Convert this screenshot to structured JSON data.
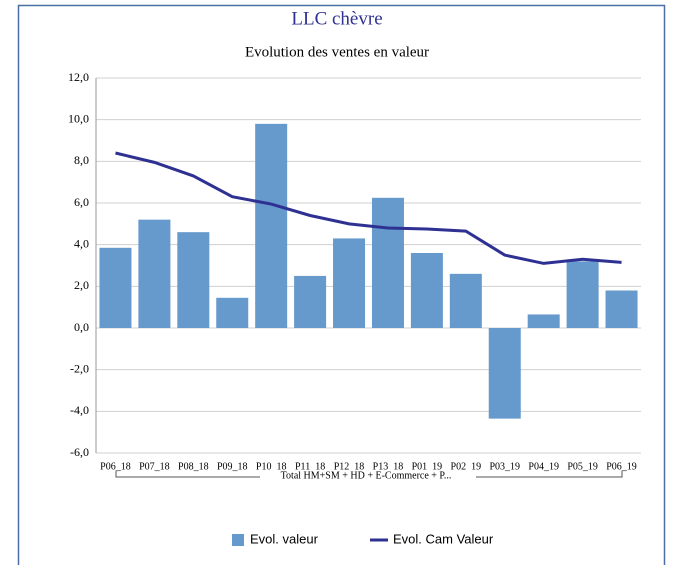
{
  "chart_data": {
    "type": "bar_line",
    "title": "LLC chèvre",
    "subtitle": "Evolution des ventes en valeur",
    "categories": [
      "P06_18",
      "P07_18",
      "P08_18",
      "P09_18",
      "P10_18",
      "P11_18",
      "P12_18",
      "P13_18",
      "P01_19",
      "P02_19",
      "P03_19",
      "P04_19",
      "P05_19",
      "P06_19"
    ],
    "category_group": "Total HM+SM + HD + E-Commerce + P...",
    "series": [
      {
        "name": "Evol.  valeur",
        "type": "bar",
        "color": "#6699cc",
        "values": [
          3.85,
          5.2,
          4.6,
          1.45,
          9.8,
          2.5,
          4.3,
          6.25,
          3.6,
          2.6,
          -4.35,
          0.65,
          3.2,
          1.8
        ]
      },
      {
        "name": "Evol. Cam Valeur",
        "type": "line",
        "color": "#2e3192",
        "values": [
          8.4,
          7.95,
          7.3,
          6.3,
          5.95,
          5.4,
          5.0,
          4.8,
          4.75,
          4.65,
          3.5,
          3.1,
          3.3,
          3.15
        ]
      }
    ],
    "ylim": [
      -6,
      12
    ],
    "yticks": [
      {
        "value": -6,
        "label": "-6,0"
      },
      {
        "value": -4,
        "label": "-4,0"
      },
      {
        "value": -2,
        "label": "-2,0"
      },
      {
        "value": 0,
        "label": "0,0"
      },
      {
        "value": 2,
        "label": "2,0"
      },
      {
        "value": 4,
        "label": "4,0"
      },
      {
        "value": 6,
        "label": "6,0"
      },
      {
        "value": 8,
        "label": "8,0"
      },
      {
        "value": 10,
        "label": "10,0"
      },
      {
        "value": 12,
        "label": "12,0"
      }
    ],
    "grid": true,
    "legend": "bottom"
  }
}
